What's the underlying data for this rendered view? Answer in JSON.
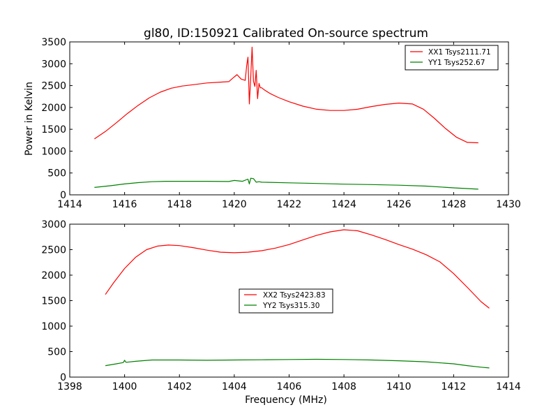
{
  "chart_data": [
    {
      "type": "line",
      "title": "gl80, ID:150921 Calibrated On-source spectrum",
      "xlabel": "",
      "ylabel": "Power in Kelvin",
      "xlim": [
        1414,
        1430
      ],
      "ylim": [
        0,
        3500
      ],
      "xticks": [
        "1414",
        "1416",
        "1418",
        "1420",
        "1422",
        "1424",
        "1426",
        "1428",
        "1430"
      ],
      "yticks": [
        "0",
        "500",
        "1000",
        "1500",
        "2000",
        "2500",
        "3000",
        "3500"
      ],
      "grid": false,
      "legend_position": "top-right",
      "series": [
        {
          "name": "XX1 Tsys2111.71",
          "color": "#ff0000",
          "x": [
            1414.9,
            1415.3,
            1415.7,
            1416.1,
            1416.5,
            1416.9,
            1417.3,
            1417.7,
            1418.1,
            1418.5,
            1419.0,
            1419.5,
            1419.8,
            1420.0,
            1420.1,
            1420.25,
            1420.4,
            1420.45,
            1420.5,
            1420.55,
            1420.6,
            1420.65,
            1420.7,
            1420.75,
            1420.8,
            1420.85,
            1420.9,
            1420.95,
            1421.0,
            1421.1,
            1421.3,
            1421.6,
            1422.0,
            1422.5,
            1423.0,
            1423.5,
            1424.0,
            1424.5,
            1425.0,
            1425.5,
            1426.0,
            1426.5,
            1426.9,
            1427.3,
            1427.7,
            1428.1,
            1428.5,
            1428.9
          ],
          "y": [
            1280,
            1450,
            1650,
            1860,
            2050,
            2220,
            2350,
            2440,
            2490,
            2520,
            2560,
            2580,
            2590,
            2700,
            2750,
            2650,
            2620,
            2950,
            3150,
            2080,
            2700,
            3380,
            2600,
            2480,
            2850,
            2200,
            2550,
            2450,
            2450,
            2400,
            2320,
            2230,
            2130,
            2030,
            1960,
            1930,
            1930,
            1960,
            2020,
            2070,
            2100,
            2080,
            1960,
            1750,
            1520,
            1320,
            1200,
            1190
          ]
        },
        {
          "name": "YY1 Tsys252.67",
          "color": "#008000",
          "x": [
            1414.9,
            1415.5,
            1416.0,
            1416.5,
            1417.0,
            1417.5,
            1418.0,
            1419.0,
            1419.8,
            1420.0,
            1420.3,
            1420.5,
            1420.55,
            1420.6,
            1420.7,
            1420.8,
            1420.9,
            1421.0,
            1422.0,
            1423.0,
            1424.0,
            1425.0,
            1426.0,
            1427.0,
            1428.0,
            1428.9
          ],
          "y": [
            170,
            210,
            250,
            280,
            300,
            310,
            310,
            310,
            305,
            330,
            310,
            360,
            250,
            380,
            370,
            290,
            300,
            290,
            275,
            260,
            245,
            235,
            220,
            200,
            160,
            130
          ]
        }
      ]
    },
    {
      "type": "line",
      "title": "",
      "xlabel": "Frequency (MHz)",
      "ylabel": "",
      "xlim": [
        1398,
        1414
      ],
      "ylim": [
        0,
        3000
      ],
      "xticks": [
        "1398",
        "1400",
        "1402",
        "1404",
        "1406",
        "1408",
        "1410",
        "1412",
        "1414"
      ],
      "yticks": [
        "0",
        "500",
        "1000",
        "1500",
        "2000",
        "2500",
        "3000"
      ],
      "grid": false,
      "legend_position": "center",
      "series": [
        {
          "name": "XX2 Tsys2423.83",
          "color": "#ff0000",
          "x": [
            1399.3,
            1399.6,
            1400.0,
            1400.4,
            1400.8,
            1401.2,
            1401.6,
            1402.0,
            1402.5,
            1403.0,
            1403.5,
            1404.0,
            1404.5,
            1405.0,
            1405.5,
            1406.0,
            1406.5,
            1407.0,
            1407.5,
            1408.0,
            1408.5,
            1409.0,
            1409.5,
            1410.0,
            1410.5,
            1411.0,
            1411.5,
            1412.0,
            1412.5,
            1413.0,
            1413.3
          ],
          "y": [
            1620,
            1850,
            2130,
            2350,
            2500,
            2570,
            2590,
            2580,
            2540,
            2490,
            2450,
            2440,
            2450,
            2480,
            2530,
            2600,
            2690,
            2780,
            2850,
            2890,
            2870,
            2790,
            2700,
            2600,
            2510,
            2400,
            2260,
            2030,
            1760,
            1480,
            1350
          ]
        },
        {
          "name": "YY2 Tsys315.30",
          "color": "#008000",
          "x": [
            1399.3,
            1399.7,
            1399.95,
            1400.0,
            1400.05,
            1400.4,
            1401.0,
            1402.0,
            1403.0,
            1404.0,
            1405.0,
            1406.0,
            1407.0,
            1408.0,
            1409.0,
            1410.0,
            1411.0,
            1412.0,
            1412.5,
            1413.0,
            1413.3
          ],
          "y": [
            225,
            260,
            285,
            330,
            290,
            310,
            335,
            335,
            330,
            335,
            340,
            345,
            350,
            345,
            335,
            320,
            300,
            260,
            225,
            195,
            180
          ]
        }
      ]
    }
  ]
}
